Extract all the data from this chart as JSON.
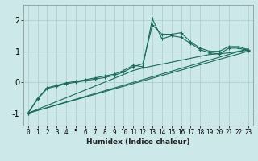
{
  "xlabel": "Humidex (Indice chaleur)",
  "bg_color": "#cce8e8",
  "line_color": "#1a6b5a",
  "grid_color": "#aacaca",
  "xlim": [
    -0.5,
    23.5
  ],
  "ylim": [
    -1.4,
    2.5
  ],
  "xticks": [
    0,
    1,
    2,
    3,
    4,
    5,
    6,
    7,
    8,
    9,
    10,
    11,
    12,
    13,
    14,
    15,
    16,
    17,
    18,
    19,
    20,
    21,
    22,
    23
  ],
  "yticks": [
    -1,
    0,
    1,
    2
  ],
  "series": [
    {
      "x": [
        0,
        1,
        2,
        3,
        4,
        5,
        6,
        7,
        8,
        9,
        10,
        11,
        12,
        13,
        14,
        15,
        16,
        17,
        18,
        19,
        20,
        21,
        22,
        23
      ],
      "y": [
        -1.0,
        -0.55,
        -0.2,
        -0.13,
        -0.05,
        0.0,
        0.05,
        0.1,
        0.15,
        0.22,
        0.33,
        0.5,
        0.6,
        1.85,
        1.55,
        1.55,
        1.6,
        1.3,
        1.1,
        1.0,
        1.0,
        1.15,
        1.15,
        1.05
      ],
      "marker": "+"
    },
    {
      "x": [
        0,
        1,
        2,
        3,
        4,
        5,
        6,
        7,
        8,
        9,
        10,
        11,
        12,
        13,
        14,
        15,
        16,
        17,
        18,
        19,
        20,
        21,
        22,
        23
      ],
      "y": [
        -1.0,
        -0.52,
        -0.18,
        -0.1,
        -0.02,
        0.03,
        0.08,
        0.14,
        0.2,
        0.26,
        0.38,
        0.55,
        0.5,
        2.05,
        1.4,
        1.5,
        1.45,
        1.25,
        1.05,
        0.95,
        0.92,
        1.1,
        1.1,
        1.02
      ],
      "marker": "+"
    },
    {
      "x": [
        0,
        10,
        11,
        12,
        19,
        20,
        21,
        22,
        23
      ],
      "y": [
        -1.0,
        0.25,
        0.38,
        0.46,
        0.9,
        0.92,
        0.95,
        1.0,
        1.03
      ],
      "marker": null
    },
    {
      "x": [
        0,
        23
      ],
      "y": [
        -1.0,
        1.0
      ],
      "marker": null
    },
    {
      "x": [
        0,
        23
      ],
      "y": [
        -1.0,
        1.08
      ],
      "marker": null
    }
  ]
}
